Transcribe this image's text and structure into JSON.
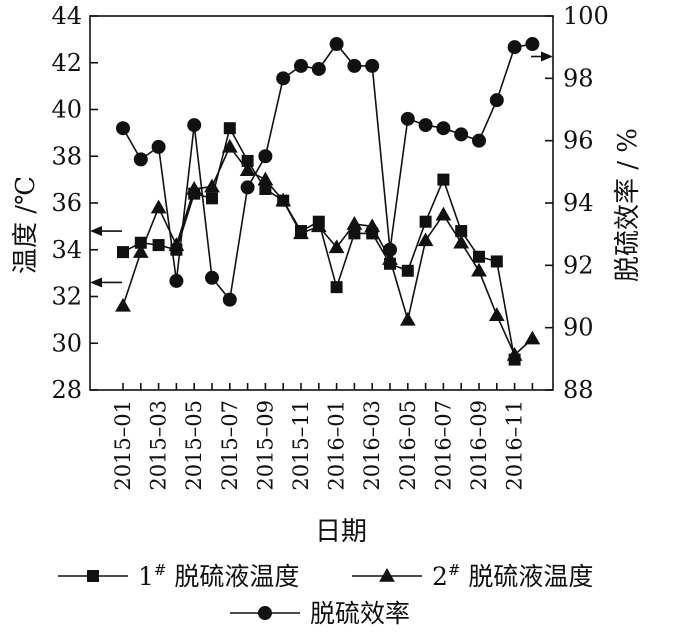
{
  "chart_data": {
    "type": "line",
    "xlabel": "日期",
    "y_left_label": "温度 /℃",
    "y_right_label": "脱硫效率 / %",
    "y_left_lim": [
      28,
      44
    ],
    "y_right_lim": [
      88,
      100
    ],
    "y_left_ticks": [
      "28",
      "30",
      "32",
      "34",
      "36",
      "38",
      "40",
      "42",
      "44"
    ],
    "y_right_ticks": [
      "88",
      "90",
      "92",
      "94",
      "96",
      "98",
      "100"
    ],
    "x_tick_labels": [
      "2015–01",
      "2015–03",
      "2015–05",
      "2015–07",
      "2015–09",
      "2015–11",
      "2016–01",
      "2016–03",
      "2016–05",
      "2016–07",
      "2016–09",
      "2016–11"
    ],
    "x_range": [
      0,
      24
    ],
    "series": [
      {
        "name": "1# 脱硫液温度",
        "legend_main": "1",
        "legend_sup": "#",
        "legend_rest": " 脱硫液温度",
        "marker": "square",
        "axis": "left",
        "x": [
          0,
          1,
          2,
          3,
          4,
          5,
          6,
          7,
          8,
          9,
          10,
          11,
          12,
          13,
          14,
          15,
          16,
          17,
          18,
          19,
          20,
          21,
          22
        ],
        "values": [
          33.9,
          34.3,
          34.2,
          34.0,
          36.4,
          36.2,
          39.2,
          37.8,
          36.6,
          36.1,
          34.8,
          35.2,
          32.4,
          34.7,
          34.7,
          33.4,
          33.1,
          35.2,
          37.0,
          34.8,
          33.7,
          33.5,
          29.3
        ]
      },
      {
        "name": "2# 脱硫液温度",
        "legend_main": "2",
        "legend_sup": "#",
        "legend_rest": " 脱硫液温度",
        "marker": "triangle",
        "axis": "left",
        "x": [
          0,
          1,
          2,
          3,
          4,
          5,
          6,
          7,
          8,
          9,
          10,
          11,
          12,
          13,
          14,
          15,
          16,
          17,
          18,
          19,
          20,
          21,
          22,
          23
        ],
        "values": [
          31.6,
          33.9,
          35.8,
          34.2,
          36.6,
          36.7,
          38.4,
          37.4,
          37.0,
          36.1,
          34.7,
          35.0,
          34.1,
          35.1,
          35.0,
          33.6,
          31.0,
          34.4,
          35.5,
          34.3,
          33.1,
          31.2,
          29.5,
          30.2
        ]
      },
      {
        "name": "脱硫效率",
        "legend_main": "脱硫效率",
        "legend_sup": "",
        "legend_rest": "",
        "marker": "circle",
        "axis": "right",
        "x": [
          0,
          1,
          2,
          3,
          4,
          5,
          6,
          7,
          8,
          9,
          10,
          11,
          12,
          13,
          14,
          15,
          16,
          17,
          18,
          19,
          20,
          21,
          22,
          23
        ],
        "values": [
          96.4,
          95.4,
          95.8,
          91.5,
          96.5,
          91.6,
          90.9,
          94.5,
          95.5,
          98.0,
          98.4,
          98.3,
          99.1,
          98.4,
          98.4,
          92.5,
          96.7,
          96.5,
          96.4,
          96.2,
          96.0,
          97.3,
          99.0,
          99.1
        ]
      }
    ],
    "arrows": [
      {
        "axis": "left",
        "value": 34.8,
        "direction": "left"
      },
      {
        "axis": "left",
        "value": 32.6,
        "direction": "left"
      },
      {
        "axis": "right",
        "value": 98.7,
        "direction": "right"
      }
    ]
  }
}
